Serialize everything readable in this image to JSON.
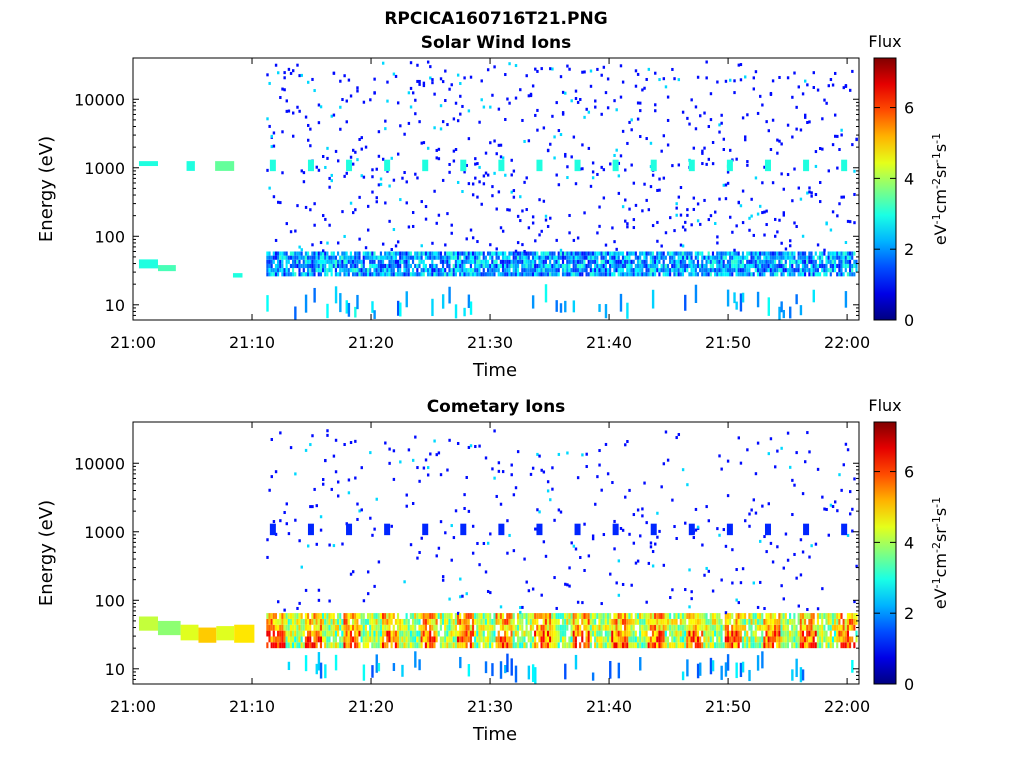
{
  "figure": {
    "file_title": "RPCICA160716T21.PNG"
  },
  "colorbar": {
    "title": "Flux",
    "ticks": [
      "0",
      "2",
      "4",
      "6"
    ],
    "tick_values": [
      0,
      2,
      4,
      6
    ],
    "range": [
      0,
      7.4
    ],
    "colormap": "jet",
    "unit_parts": [
      {
        "text": "eV",
        "sup": false
      },
      {
        "text": "-1",
        "sup": true
      },
      {
        "text": "cm",
        "sup": false
      },
      {
        "text": "-2",
        "sup": true
      },
      {
        "text": "sr",
        "sup": false
      },
      {
        "text": "-1",
        "sup": true
      },
      {
        "text": "s",
        "sup": false
      },
      {
        "text": "-1",
        "sup": true
      }
    ]
  },
  "chart_data": [
    {
      "type": "heatmap",
      "title": "Solar Wind Ions",
      "xlabel": "Time",
      "ylabel": "Energy (eV)",
      "x_ticks": [
        "21:00",
        "21:10",
        "21:20",
        "21:30",
        "21:40",
        "21:50",
        "22:00"
      ],
      "x_range_minutes": [
        0,
        61
      ],
      "y_scale": "log",
      "y_ticks": [
        "10",
        "100",
        "1000",
        "10000"
      ],
      "y_tick_values": [
        10,
        100,
        1000,
        10000
      ],
      "y_range": [
        6,
        40000
      ],
      "grid": false,
      "features": {
        "data_gap_minutes": [
          11.2,
          61
        ],
        "early_bands": [
          {
            "t0": 0.5,
            "t1": 2.1,
            "energy_lo": 1060,
            "energy_hi": 1250,
            "flux": 3.0
          },
          {
            "t0": 4.5,
            "t1": 5.2,
            "energy_lo": 900,
            "energy_hi": 1250,
            "flux": 3.0
          },
          {
            "t0": 6.9,
            "t1": 8.5,
            "energy_lo": 900,
            "energy_hi": 1250,
            "flux": 3.5
          },
          {
            "t0": 0.5,
            "t1": 2.1,
            "energy_lo": 34,
            "energy_hi": 46,
            "flux": 3.0
          },
          {
            "t0": 2.1,
            "t1": 3.6,
            "energy_lo": 31,
            "energy_hi": 38,
            "flux": 3.3
          },
          {
            "t0": 8.4,
            "t1": 9.2,
            "energy_lo": 25,
            "energy_hi": 29,
            "flux": 3.0
          }
        ],
        "main_band_energy_ev": [
          26,
          60
        ],
        "main_band_flux": 2.1,
        "periodic_peak_energy_ev": 1050,
        "periodic_peak_flux": 3.0,
        "periodic_peak_interval_min": 3.2,
        "scatter_energy_ev": [
          60,
          35000
        ],
        "scatter_flux": 1.0,
        "low_energy_streak_ev": [
          6,
          20
        ]
      }
    },
    {
      "type": "heatmap",
      "title": "Cometary Ions",
      "xlabel": "Time",
      "ylabel": "Energy (eV)",
      "x_ticks": [
        "21:00",
        "21:10",
        "21:20",
        "21:30",
        "21:40",
        "21:50",
        "22:00"
      ],
      "x_range_minutes": [
        0,
        61
      ],
      "y_scale": "log",
      "y_ticks": [
        "10",
        "100",
        "1000",
        "10000"
      ],
      "y_tick_values": [
        10,
        100,
        1000,
        10000
      ],
      "y_range": [
        6,
        40000
      ],
      "grid": false,
      "features": {
        "data_gap_minutes": [
          11.2,
          61
        ],
        "early_bands": [
          {
            "t0": 0.5,
            "t1": 2.1,
            "energy_lo": 36,
            "energy_hi": 58,
            "flux": 4.2
          },
          {
            "t0": 2.1,
            "t1": 4.0,
            "energy_lo": 31,
            "energy_hi": 50,
            "flux": 3.8
          },
          {
            "t0": 4.0,
            "t1": 5.5,
            "energy_lo": 26,
            "energy_hi": 44,
            "flux": 4.4
          },
          {
            "t0": 5.5,
            "t1": 7.0,
            "energy_lo": 24,
            "energy_hi": 40,
            "flux": 5.0
          },
          {
            "t0": 7.0,
            "t1": 8.5,
            "energy_lo": 26,
            "energy_hi": 42,
            "flux": 4.4
          },
          {
            "t0": 8.5,
            "t1": 10.2,
            "energy_lo": 24,
            "energy_hi": 44,
            "flux": 4.8
          }
        ],
        "main_band_energy_ev": [
          20,
          65
        ],
        "main_band_flux": 4.3,
        "periodic_peak_energy_ev": 1050,
        "periodic_peak_flux": 1.2,
        "periodic_peak_interval_min": 3.2,
        "scatter_energy_ev": [
          60,
          30000
        ],
        "scatter_flux": 1.0,
        "low_energy_streak_ev": [
          6,
          18
        ]
      }
    }
  ]
}
